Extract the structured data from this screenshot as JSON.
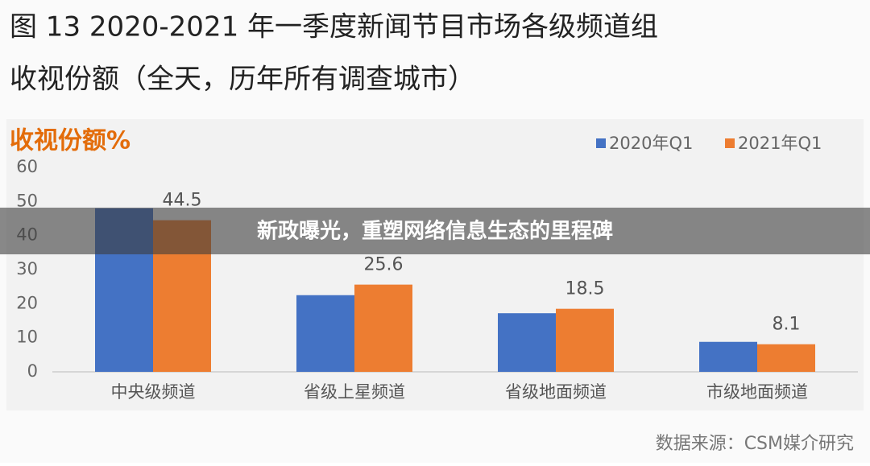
{
  "caption": {
    "line1": "图 13 2020-2021 年一季度新闻节目市场各级频道组",
    "line2": "收视份额（全天，历年所有调查城市）"
  },
  "banner": "新政曝光，重塑网络信息生态的里程碑",
  "source": "数据来源：CSM媒介研究",
  "chart_data": {
    "type": "bar",
    "title": "收视份额%",
    "categories": [
      "中央级频道",
      "省级上星频道",
      "省级地面频道",
      "市级地面频道"
    ],
    "series": [
      {
        "name": "2020年Q1",
        "color": "#4472c4",
        "values": [
          48,
          22.5,
          17.2,
          8.8
        ],
        "show_labels": false
      },
      {
        "name": "2021年Q1",
        "color": "#ed7d31",
        "values": [
          44.5,
          25.6,
          18.5,
          8.1
        ],
        "show_labels": true
      }
    ],
    "ylim": [
      0,
      60
    ],
    "yticks": [
      0,
      10,
      20,
      30,
      40,
      50,
      60
    ],
    "grid": false,
    "legend": "top-right"
  }
}
